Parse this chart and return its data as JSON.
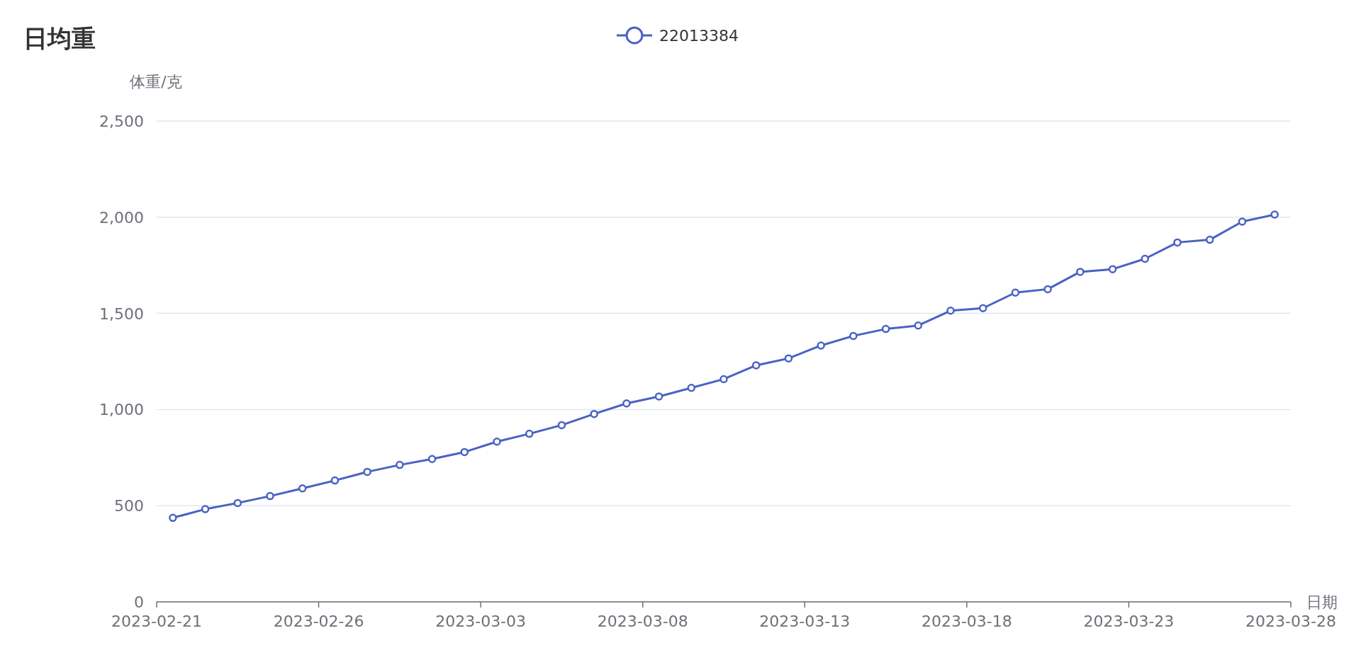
{
  "chart_data": {
    "type": "line",
    "title": "日均重",
    "xlabel": "日期",
    "ylabel": "体重/克",
    "legend": "top",
    "marker": "circle",
    "line_style": "solid",
    "grid": "y",
    "x": [
      "2023-02-21T12:00",
      "2023-02-22T12:00",
      "2023-02-23T12:00",
      "2023-02-24T12:00",
      "2023-02-25T12:00",
      "2023-02-26T12:00",
      "2023-02-27T12:00",
      "2023-02-28T12:00",
      "2023-03-01T12:00",
      "2023-03-02T12:00",
      "2023-03-03T12:00",
      "2023-03-04T12:00",
      "2023-03-05T12:00",
      "2023-03-06T12:00",
      "2023-03-07T12:00",
      "2023-03-08T12:00",
      "2023-03-09T12:00",
      "2023-03-10T12:00",
      "2023-03-11T12:00",
      "2023-03-12T12:00",
      "2023-03-13T12:00",
      "2023-03-14T12:00",
      "2023-03-15T12:00",
      "2023-03-16T12:00",
      "2023-03-17T12:00",
      "2023-03-18T12:00",
      "2023-03-19T12:00",
      "2023-03-20T12:00",
      "2023-03-21T12:00",
      "2023-03-22T12:00",
      "2023-03-23T12:00",
      "2023-03-24T12:00",
      "2023-03-25T12:00",
      "2023-03-26T12:00",
      "2023-03-27T12:00"
    ],
    "series": [
      {
        "name": "22013384",
        "color": "#4a62c4",
        "values": [
          437,
          482,
          514,
          550,
          590,
          631,
          676,
          712,
          743,
          779,
          833,
          874,
          919,
          977,
          1032,
          1068,
          1113,
          1158,
          1230,
          1266,
          1333,
          1383,
          1419,
          1437,
          1514,
          1527,
          1608,
          1626,
          1716,
          1730,
          1784,
          1869,
          1883,
          1977,
          2014
        ]
      }
    ],
    "xlim": [
      "2023-02-21",
      "2023-03-28"
    ],
    "xticks": [
      {
        "value": "2023-02-21",
        "label": "2023-02-21"
      },
      {
        "value": "2023-02-26",
        "label": "2023-02-26"
      },
      {
        "value": "2023-03-03",
        "label": "2023-03-03"
      },
      {
        "value": "2023-03-08",
        "label": "2023-03-08"
      },
      {
        "value": "2023-03-13",
        "label": "2023-03-13"
      },
      {
        "value": "2023-03-18",
        "label": "2023-03-18"
      },
      {
        "value": "2023-03-23",
        "label": "2023-03-23"
      },
      {
        "value": "2023-03-28",
        "label": "2023-03-28"
      }
    ],
    "ylim": [
      0,
      2500
    ],
    "yticks": [
      {
        "value": 0,
        "label": "0"
      },
      {
        "value": 500,
        "label": "500"
      },
      {
        "value": 1000,
        "label": "1,000"
      },
      {
        "value": 1500,
        "label": "1,500"
      },
      {
        "value": 2000,
        "label": "2,000"
      },
      {
        "value": 2500,
        "label": "2,500"
      }
    ]
  }
}
